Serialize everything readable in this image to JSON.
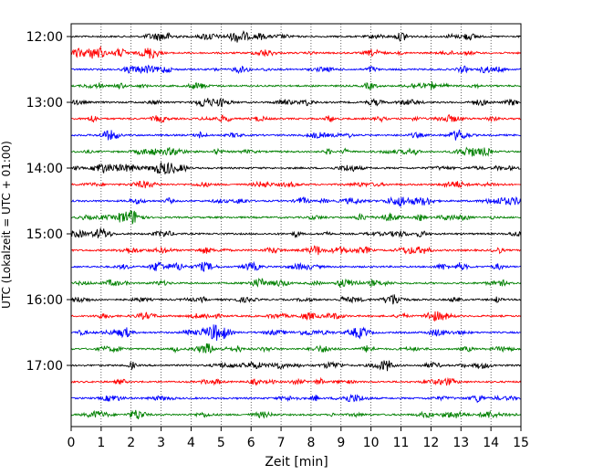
{
  "chart_data": {
    "type": "line",
    "title": "",
    "xlabel": "Zeit  [min]",
    "ylabel": "UTC (Lokalzeit = UTC + 01:00)",
    "xlim": [
      0,
      15
    ],
    "x_ticks": [
      "0",
      "1",
      "2",
      "3",
      "4",
      "5",
      "6",
      "7",
      "8",
      "9",
      "10",
      "11",
      "12",
      "13",
      "14",
      "15"
    ],
    "y_ticks": [
      "12:00",
      "13:00",
      "14:00",
      "15:00",
      "16:00",
      "17:00"
    ],
    "grid": "vertical dotted lines at each minute",
    "trace_interval_min": 15,
    "trace_colors": [
      "#000000",
      "#ff0000",
      "#0000ff",
      "#008000"
    ],
    "traces": [
      {
        "start": "12:00",
        "color": "#000000"
      },
      {
        "start": "12:15",
        "color": "#ff0000"
      },
      {
        "start": "12:30",
        "color": "#0000ff"
      },
      {
        "start": "12:45",
        "color": "#008000"
      },
      {
        "start": "13:00",
        "color": "#000000"
      },
      {
        "start": "13:15",
        "color": "#ff0000"
      },
      {
        "start": "13:30",
        "color": "#0000ff"
      },
      {
        "start": "13:45",
        "color": "#008000"
      },
      {
        "start": "14:00",
        "color": "#000000"
      },
      {
        "start": "14:15",
        "color": "#ff0000"
      },
      {
        "start": "14:30",
        "color": "#0000ff"
      },
      {
        "start": "14:45",
        "color": "#008000"
      },
      {
        "start": "15:00",
        "color": "#000000"
      },
      {
        "start": "15:15",
        "color": "#ff0000"
      },
      {
        "start": "15:30",
        "color": "#0000ff"
      },
      {
        "start": "15:45",
        "color": "#008000"
      },
      {
        "start": "16:00",
        "color": "#000000"
      },
      {
        "start": "16:15",
        "color": "#ff0000"
      },
      {
        "start": "16:30",
        "color": "#0000ff"
      },
      {
        "start": "16:45",
        "color": "#008000"
      },
      {
        "start": "17:00",
        "color": "#000000"
      },
      {
        "start": "17:15",
        "color": "#ff0000"
      },
      {
        "start": "17:30",
        "color": "#0000ff"
      },
      {
        "start": "17:45",
        "color": "#008000"
      }
    ]
  }
}
